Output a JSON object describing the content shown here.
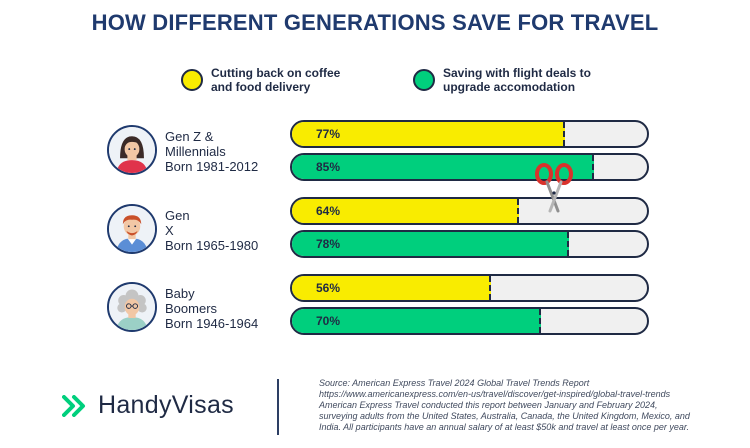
{
  "title": "HOW DIFFERENT GENERATIONS SAVE FOR TRAVEL",
  "legend": [
    {
      "label": "Cutting back on coffee and food delivery",
      "color": "#f9ec00"
    },
    {
      "label": "Saving with flight deals to upgrade accomodation",
      "color": "#00cf7d"
    }
  ],
  "generations": [
    {
      "name": "Gen Z &\nMillennials",
      "born": "Born 1981-2012"
    },
    {
      "name": "Gen\nX",
      "born": "Born 1965-1980"
    },
    {
      "name": "Baby\nBoomers",
      "born": "Born 1946-1964"
    }
  ],
  "chart_data": {
    "type": "bar",
    "orientation": "horizontal",
    "title": "HOW DIFFERENT GENERATIONS SAVE FOR TRAVEL",
    "categories": [
      "Gen Z & Millennials",
      "Gen X",
      "Baby Boomers"
    ],
    "unit": "%",
    "xlim": [
      0,
      100
    ],
    "series": [
      {
        "name": "Cutting back on coffee and food delivery",
        "color": "#f9ec00",
        "values": [
          77,
          64,
          56
        ],
        "labels": [
          "77%",
          "64%",
          "56%"
        ]
      },
      {
        "name": "Saving with flight deals to upgrade accomodation",
        "color": "#00cf7d",
        "values": [
          85,
          78,
          70
        ],
        "labels": [
          "85%",
          "78%",
          "70%"
        ]
      }
    ]
  },
  "brand": {
    "name": "HandyVisas",
    "accent": "#00cf7d"
  },
  "source": {
    "line1": "Source: American Express Travel 2024 Global Travel Trends Report",
    "line2": "https://www.americanexpress.com/en-us/travel/discover/get-inspired/global-travel-trends",
    "line3": "American Express Travel conducted this report between January and February 2024,",
    "line4": "surveying adults from the United States, Australia, Canada, the United Kingdom, Mexico, and",
    "line5": "India. All participants have an annual salary of at least $50k and travel at least once per year."
  }
}
